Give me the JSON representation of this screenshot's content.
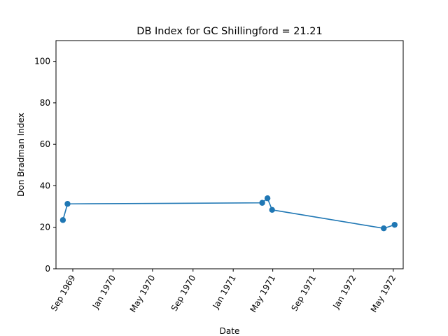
{
  "chart_data": {
    "type": "line",
    "title": "DB Index for GC Shillingford = 21.21",
    "xlabel": "Date",
    "ylabel": "Don Bradman Index",
    "ylim": [
      0,
      110
    ],
    "yticks": [
      0,
      20,
      40,
      60,
      80,
      100
    ],
    "xlim": [
      "1969-07-12",
      "1972-05-31"
    ],
    "xticks": [
      {
        "date": "1969-09-01",
        "label": "Sep 1969"
      },
      {
        "date": "1970-01-01",
        "label": "Jan 1970"
      },
      {
        "date": "1970-05-01",
        "label": "May 1970"
      },
      {
        "date": "1970-09-01",
        "label": "Sep 1970"
      },
      {
        "date": "1971-01-01",
        "label": "Jan 1971"
      },
      {
        "date": "1971-05-01",
        "label": "May 1971"
      },
      {
        "date": "1971-09-01",
        "label": "Sep 1971"
      },
      {
        "date": "1972-01-01",
        "label": "Jan 1972"
      },
      {
        "date": "1972-05-01",
        "label": "May 1972"
      }
    ],
    "grid": false,
    "color": "#1f77b4",
    "series": [
      {
        "x": [
          "1969-08-02",
          "1969-08-16",
          "1971-03-30",
          "1971-04-15",
          "1971-04-29",
          "1972-04-02",
          "1972-05-05"
        ],
        "y": [
          23.5,
          31.3,
          31.8,
          34.0,
          28.4,
          19.5,
          21.21
        ]
      }
    ]
  }
}
